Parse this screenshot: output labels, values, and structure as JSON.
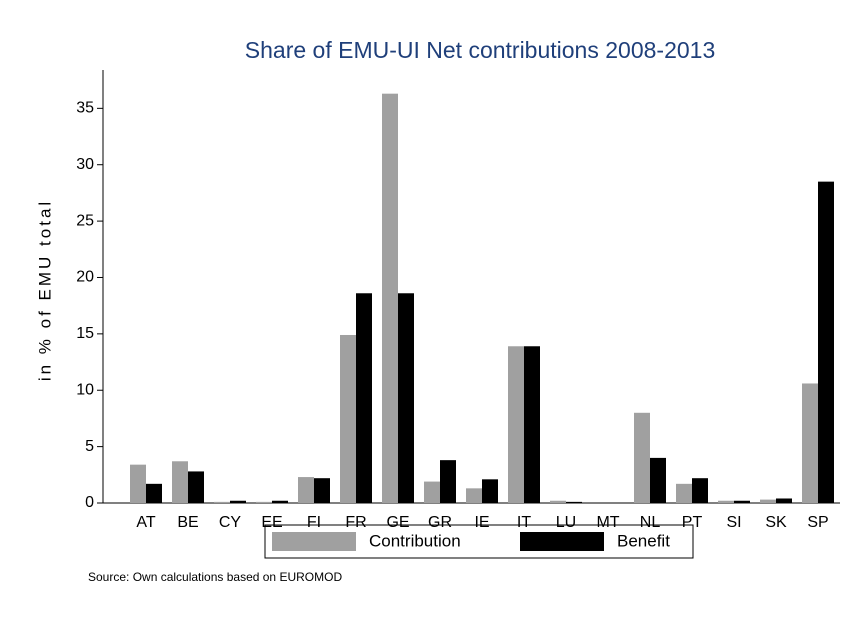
{
  "chart_data": {
    "type": "bar",
    "title": "Share of EMU-UI Net contributions 2008-2013",
    "y_label": "in % of EMU total",
    "source": "Source: Own calculations based on EUROMOD",
    "categories": [
      "AT",
      "BE",
      "CY",
      "EE",
      "FI",
      "FR",
      "GE",
      "GR",
      "IE",
      "IT",
      "LU",
      "MT",
      "NL",
      "PT",
      "SI",
      "SK",
      "SP"
    ],
    "series": [
      {
        "name": "Contribution",
        "color": "#a0a0a0",
        "values": [
          3.4,
          3.7,
          0.1,
          0.1,
          2.3,
          14.9,
          36.3,
          1.9,
          1.3,
          13.9,
          0.2,
          0,
          8.0,
          1.7,
          0.2,
          0.3,
          10.6
        ]
      },
      {
        "name": "Benefit",
        "color": "#000000",
        "values": [
          1.7,
          2.8,
          0.2,
          0.2,
          2.2,
          18.6,
          18.6,
          3.8,
          2.1,
          13.9,
          0.1,
          0,
          4.0,
          2.2,
          0.2,
          0.4,
          28.5
        ]
      }
    ],
    "ylim": [
      0,
      38.4
    ],
    "yticks": [
      0,
      5,
      10,
      15,
      20,
      25,
      30,
      35
    ],
    "grid": false,
    "legend": "bottom"
  }
}
